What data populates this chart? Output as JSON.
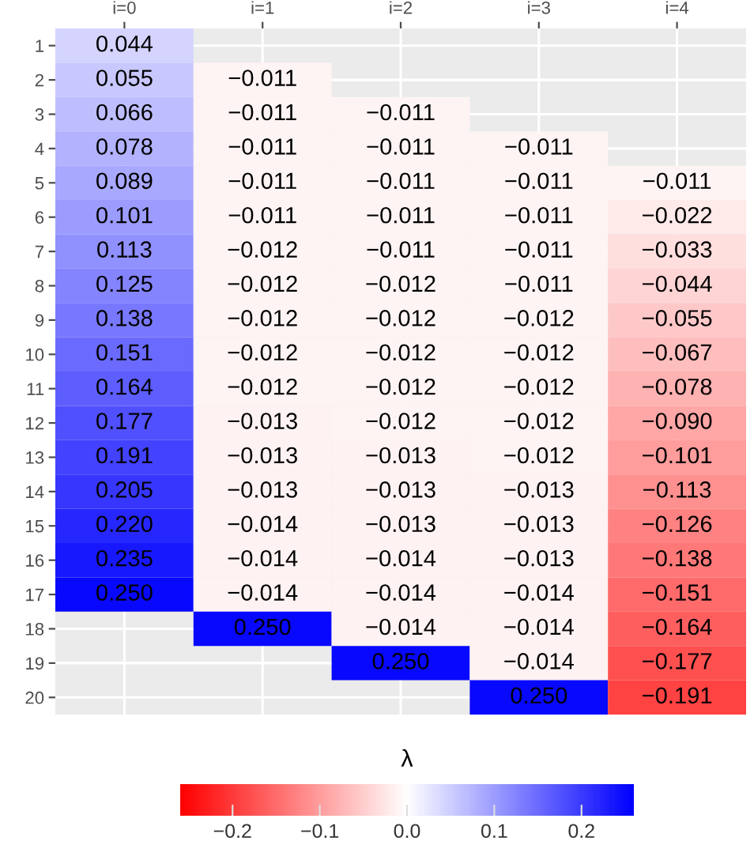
{
  "chart_data": {
    "type": "heatmap",
    "categories": [
      "i=0",
      "i=1",
      "i=2",
      "i=3",
      "i=4"
    ],
    "y_categories": [
      "1",
      "2",
      "3",
      "4",
      "5",
      "6",
      "7",
      "8",
      "9",
      "10",
      "11",
      "12",
      "13",
      "14",
      "15",
      "16",
      "17",
      "18",
      "19",
      "20"
    ],
    "cells": [
      [
        0.044,
        null,
        null,
        null,
        null
      ],
      [
        0.055,
        -0.011,
        null,
        null,
        null
      ],
      [
        0.066,
        -0.011,
        -0.011,
        null,
        null
      ],
      [
        0.078,
        -0.011,
        -0.011,
        -0.011,
        null
      ],
      [
        0.089,
        -0.011,
        -0.011,
        -0.011,
        -0.011
      ],
      [
        0.101,
        -0.011,
        -0.011,
        -0.011,
        -0.022
      ],
      [
        0.113,
        -0.012,
        -0.011,
        -0.011,
        -0.033
      ],
      [
        0.125,
        -0.012,
        -0.012,
        -0.011,
        -0.044
      ],
      [
        0.138,
        -0.012,
        -0.012,
        -0.012,
        -0.055
      ],
      [
        0.151,
        -0.012,
        -0.012,
        -0.012,
        -0.067
      ],
      [
        0.164,
        -0.012,
        -0.012,
        -0.012,
        -0.078
      ],
      [
        0.177,
        -0.013,
        -0.012,
        -0.012,
        -0.09
      ],
      [
        0.191,
        -0.013,
        -0.013,
        -0.012,
        -0.101
      ],
      [
        0.205,
        -0.013,
        -0.013,
        -0.013,
        -0.113
      ],
      [
        0.22,
        -0.014,
        -0.013,
        -0.013,
        -0.126
      ],
      [
        0.235,
        -0.014,
        -0.014,
        -0.013,
        -0.138
      ],
      [
        0.25,
        -0.014,
        -0.014,
        -0.014,
        -0.151
      ],
      [
        null,
        0.25,
        -0.014,
        -0.014,
        -0.164
      ],
      [
        null,
        null,
        0.25,
        -0.014,
        -0.177
      ],
      [
        null,
        null,
        null,
        0.25,
        -0.191
      ]
    ],
    "cell_labels": [
      [
        "0.044",
        null,
        null,
        null,
        null
      ],
      [
        "0.055",
        "−0.011",
        null,
        null,
        null
      ],
      [
        "0.066",
        "−0.011",
        "−0.011",
        null,
        null
      ],
      [
        "0.078",
        "−0.011",
        "−0.011",
        "−0.011",
        null
      ],
      [
        "0.089",
        "−0.011",
        "−0.011",
        "−0.011",
        "−0.011"
      ],
      [
        "0.101",
        "−0.011",
        "−0.011",
        "−0.011",
        "−0.022"
      ],
      [
        "0.113",
        "−0.012",
        "−0.011",
        "−0.011",
        "−0.033"
      ],
      [
        "0.125",
        "−0.012",
        "−0.012",
        "−0.011",
        "−0.044"
      ],
      [
        "0.138",
        "−0.012",
        "−0.012",
        "−0.012",
        "−0.055"
      ],
      [
        "0.151",
        "−0.012",
        "−0.012",
        "−0.012",
        "−0.067"
      ],
      [
        "0.164",
        "−0.012",
        "−0.012",
        "−0.012",
        "−0.078"
      ],
      [
        "0.177",
        "−0.013",
        "−0.012",
        "−0.012",
        "−0.090"
      ],
      [
        "0.191",
        "−0.013",
        "−0.013",
        "−0.012",
        "−0.101"
      ],
      [
        "0.205",
        "−0.013",
        "−0.013",
        "−0.013",
        "−0.113"
      ],
      [
        "0.220",
        "−0.014",
        "−0.013",
        "−0.013",
        "−0.126"
      ],
      [
        "0.235",
        "−0.014",
        "−0.014",
        "−0.013",
        "−0.138"
      ],
      [
        "0.250",
        "−0.014",
        "−0.014",
        "−0.014",
        "−0.151"
      ],
      [
        null,
        "0.250",
        "−0.014",
        "−0.014",
        "−0.164"
      ],
      [
        null,
        null,
        "0.250",
        "−0.014",
        "−0.177"
      ],
      [
        null,
        null,
        null,
        "0.250",
        "−0.191"
      ]
    ],
    "clabel": "λ",
    "clim": [
      -0.26,
      0.26
    ],
    "cticks": [
      {
        "value": -0.2,
        "label": "−0.2"
      },
      {
        "value": -0.1,
        "label": "−0.1"
      },
      {
        "value": 0,
        "label": "0.0"
      },
      0.1,
      0.2
    ],
    "grid": true
  }
}
